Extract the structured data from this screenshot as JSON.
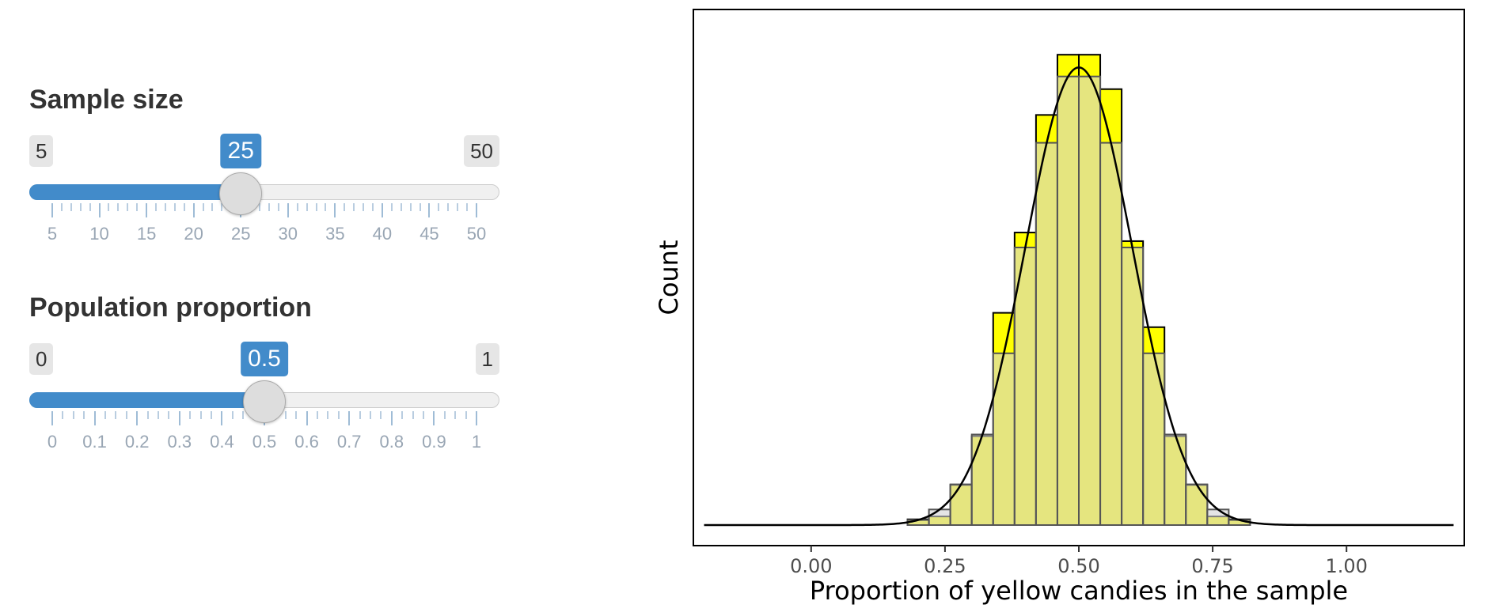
{
  "sliders": [
    {
      "label": "Sample size",
      "min": 5,
      "max": 50,
      "value": 25,
      "min_label": "5",
      "max_label": "50",
      "value_label": "25",
      "tick_labels": [
        "5",
        "10",
        "15",
        "20",
        "25",
        "30",
        "35",
        "40",
        "45",
        "50"
      ],
      "tick_values": [
        5,
        10,
        15,
        20,
        25,
        30,
        35,
        40,
        45,
        50
      ],
      "minor_per_major": 4
    },
    {
      "label": "Population proportion",
      "min": 0,
      "max": 1,
      "value": 0.5,
      "min_label": "0",
      "max_label": "1",
      "value_label": "0.5",
      "tick_labels": [
        "0",
        "0.1",
        "0.2",
        "0.3",
        "0.4",
        "0.5",
        "0.6",
        "0.7",
        "0.8",
        "0.9",
        "1"
      ],
      "tick_values": [
        0,
        0.1,
        0.2,
        0.3,
        0.4,
        0.5,
        0.6,
        0.7,
        0.8,
        0.9,
        1
      ],
      "minor_per_major": 3
    }
  ],
  "colors": {
    "accent": "#428bca",
    "histogram_fill": "#ffff00",
    "overlay_fill": "#d3d3d3",
    "curve": "#000000"
  },
  "chart_data": {
    "type": "bar",
    "title": "",
    "xlabel": "Proportion of yellow candies in the sample",
    "ylabel": "Count",
    "xlim": [
      -0.22,
      1.22
    ],
    "ylim": [
      0,
      0.1715
    ],
    "x_ticks": [
      0,
      0.25,
      0.5,
      0.75,
      1
    ],
    "x_tick_labels": [
      "0.00",
      "0.25",
      "0.50",
      "0.75",
      "1.00"
    ],
    "y_ticks_visible": false,
    "grid": false,
    "legend": "none",
    "bin_width": 0.04,
    "series": [
      {
        "name": "",
        "kind": "histogram",
        "bins": [
          {
            "x": 0.2,
            "value": 0.002
          },
          {
            "x": 0.24,
            "value": 0.003
          },
          {
            "x": 0.28,
            "value": 0.014
          },
          {
            "x": 0.32,
            "value": 0.031
          },
          {
            "x": 0.36,
            "value": 0.074
          },
          {
            "x": 0.4,
            "value": 0.102
          },
          {
            "x": 0.44,
            "value": 0.143
          },
          {
            "x": 0.48,
            "value": 0.164
          },
          {
            "x": 0.52,
            "value": 0.164
          },
          {
            "x": 0.56,
            "value": 0.152
          },
          {
            "x": 0.6,
            "value": 0.099
          },
          {
            "x": 0.64,
            "value": 0.069
          },
          {
            "x": 0.68,
            "value": 0.031
          },
          {
            "x": 0.72,
            "value": 0.014
          },
          {
            "x": 0.76,
            "value": 0.003
          },
          {
            "x": 0.8,
            "value": 0.002
          }
        ]
      },
      {
        "name": "",
        "kind": "normal-approximation",
        "mean": 0.5,
        "sd": 0.1,
        "x_range": [
          -0.2,
          1.2
        ]
      }
    ]
  }
}
